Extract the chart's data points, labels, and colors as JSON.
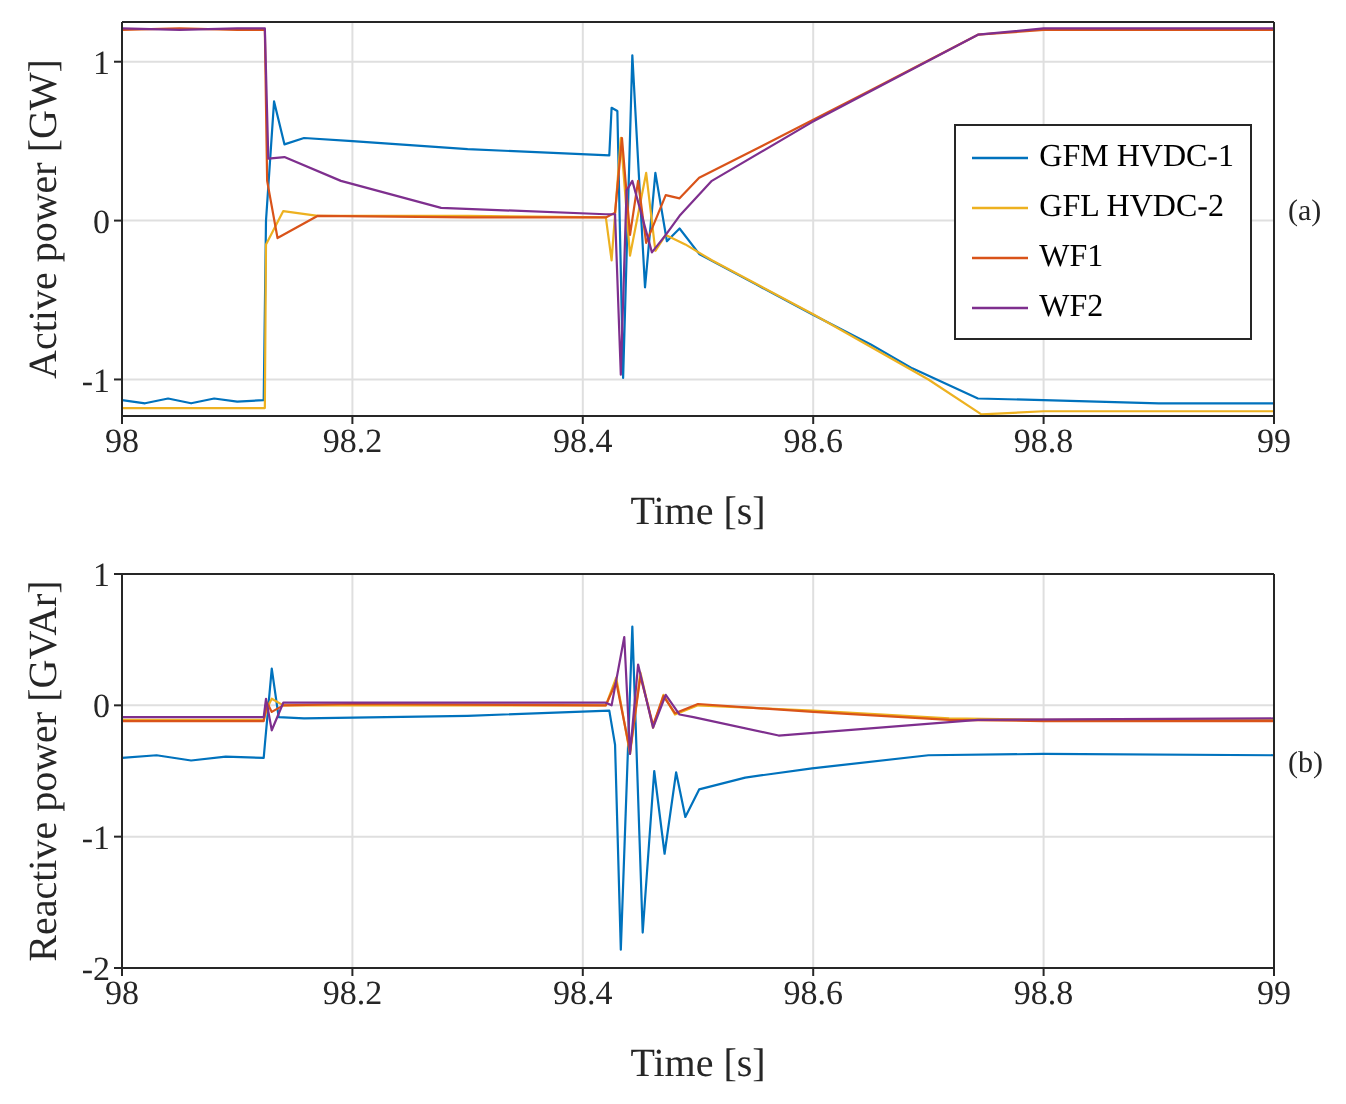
{
  "chart_data": [
    {
      "type": "line",
      "ylabel": "Active power [GW]",
      "xlabel": "Time [s]",
      "xlim": [
        98,
        99
      ],
      "xticks": [
        98,
        98.2,
        98.4,
        98.6,
        98.8,
        99
      ],
      "ylim": [
        -1.23,
        1.25
      ],
      "yticks": [
        -1,
        0,
        1
      ],
      "grid": true,
      "legend": "right",
      "annotations": [
        "(a)"
      ],
      "series": [
        {
          "name": "GFM HVDC-1",
          "color": "#0072bd",
          "x": [
            98,
            98.02,
            98.04,
            98.06,
            98.08,
            98.1,
            98.123,
            98.125,
            98.132,
            98.141,
            98.158,
            98.2,
            98.3,
            98.423,
            98.425,
            98.43,
            98.435,
            98.443,
            98.454,
            98.463,
            98.473,
            98.484,
            98.501,
            98.55,
            98.599,
            98.65,
            98.686,
            98.743,
            98.8,
            98.9,
            99
          ],
          "values": [
            -1.13,
            -1.15,
            -1.12,
            -1.15,
            -1.12,
            -1.14,
            -1.13,
            0.0,
            0.75,
            0.48,
            0.52,
            0.5,
            0.45,
            0.41,
            0.71,
            0.69,
            -0.99,
            1.04,
            -0.42,
            0.3,
            -0.13,
            -0.05,
            -0.21,
            -0.4,
            -0.59,
            -0.78,
            -0.93,
            -1.12,
            -1.13,
            -1.15,
            -1.15
          ]
        },
        {
          "name": "GFL HVDC-2",
          "color": "#edb120",
          "x": [
            98,
            98.05,
            98.1,
            98.124,
            98.125,
            98.14,
            98.17,
            98.3,
            98.42,
            98.425,
            98.433,
            98.441,
            98.455,
            98.463,
            98.472,
            98.489,
            98.512,
            98.6,
            98.7,
            98.746,
            98.8,
            99
          ],
          "values": [
            -1.18,
            -1.18,
            -1.18,
            -1.18,
            -0.15,
            0.06,
            0.03,
            0.03,
            0.02,
            -0.25,
            0.52,
            -0.22,
            0.3,
            -0.19,
            -0.09,
            -0.15,
            -0.25,
            -0.59,
            -1.0,
            -1.22,
            -1.2,
            -1.2
          ]
        },
        {
          "name": "WF1",
          "color": "#d95319",
          "x": [
            98,
            98.05,
            98.1,
            98.124,
            98.126,
            98.135,
            98.17,
            98.3,
            98.42,
            98.428,
            98.434,
            98.441,
            98.448,
            98.455,
            98.472,
            98.484,
            98.501,
            98.553,
            98.65,
            98.743,
            98.8,
            99
          ],
          "values": [
            1.2,
            1.21,
            1.2,
            1.2,
            0.25,
            -0.11,
            0.03,
            0.02,
            0.02,
            0.05,
            0.52,
            -0.09,
            0.25,
            -0.14,
            0.16,
            0.14,
            0.27,
            0.46,
            0.82,
            1.17,
            1.2,
            1.2
          ]
        },
        {
          "name": "WF2",
          "color": "#7e2f8e",
          "x": [
            98,
            98.05,
            98.1,
            98.124,
            98.127,
            98.141,
            98.19,
            98.277,
            98.42,
            98.428,
            98.433,
            98.438,
            98.443,
            98.46,
            98.472,
            98.484,
            98.512,
            98.599,
            98.743,
            98.8,
            99
          ],
          "values": [
            1.21,
            1.2,
            1.21,
            1.21,
            0.39,
            0.4,
            0.25,
            0.08,
            0.04,
            0.04,
            -0.97,
            0.19,
            0.25,
            -0.2,
            -0.09,
            0.03,
            0.25,
            0.62,
            1.17,
            1.21,
            1.21
          ]
        }
      ]
    },
    {
      "type": "line",
      "ylabel": "Reactive power [GVAr]",
      "xlabel": "Time [s]",
      "xlim": [
        98,
        99
      ],
      "xticks": [
        98,
        98.2,
        98.4,
        98.6,
        98.8,
        99
      ],
      "ylim": [
        -2,
        1
      ],
      "yticks": [
        -2,
        -1,
        0,
        1
      ],
      "grid": true,
      "annotations": [
        "(b)"
      ],
      "series": [
        {
          "color": "#0072bd",
          "x": [
            98,
            98.03,
            98.06,
            98.09,
            98.123,
            98.124,
            98.13,
            98.136,
            98.158,
            98.3,
            98.423,
            98.428,
            98.433,
            98.443,
            98.452,
            98.462,
            98.471,
            98.481,
            98.489,
            98.501,
            98.541,
            98.599,
            98.7,
            98.8,
            99
          ],
          "values": [
            -0.4,
            -0.38,
            -0.42,
            -0.39,
            -0.4,
            -0.3,
            0.28,
            -0.09,
            -0.1,
            -0.08,
            -0.04,
            -0.3,
            -1.86,
            0.6,
            -1.73,
            -0.5,
            -1.13,
            -0.51,
            -0.85,
            -0.64,
            -0.55,
            -0.48,
            -0.38,
            -0.37,
            -0.38
          ]
        },
        {
          "color": "#edb120",
          "x": [
            98,
            98.123,
            98.126,
            98.13,
            98.14,
            98.2,
            98.42,
            98.429,
            98.441,
            98.45,
            98.461,
            98.47,
            98.48,
            98.5,
            98.6,
            98.718,
            98.8,
            99
          ],
          "values": [
            -0.11,
            -0.11,
            -0.02,
            0.05,
            0.0,
            0.0,
            0.0,
            0.21,
            -0.37,
            0.25,
            -0.17,
            0.08,
            -0.07,
            0.0,
            -0.04,
            -0.1,
            -0.11,
            -0.11
          ]
        },
        {
          "color": "#d95319",
          "x": [
            98,
            98.123,
            98.126,
            98.13,
            98.14,
            98.2,
            98.42,
            98.429,
            98.441,
            98.45,
            98.461,
            98.47,
            98.48,
            98.5,
            98.6,
            98.718,
            98.8,
            99
          ],
          "values": [
            -0.12,
            -0.12,
            0.02,
            -0.05,
            0.0,
            0.01,
            0.0,
            0.18,
            -0.35,
            0.22,
            -0.15,
            0.07,
            -0.06,
            0.01,
            -0.05,
            -0.11,
            -0.12,
            -0.12
          ]
        },
        {
          "color": "#7e2f8e",
          "x": [
            98,
            98.123,
            98.125,
            98.13,
            98.14,
            98.2,
            98.42,
            98.425,
            98.436,
            98.441,
            98.448,
            98.461,
            98.472,
            98.484,
            98.496,
            98.57,
            98.6,
            98.743,
            99
          ],
          "values": [
            -0.09,
            -0.09,
            0.05,
            -0.19,
            0.02,
            0.02,
            0.02,
            0.0,
            0.52,
            -0.37,
            0.31,
            -0.17,
            0.08,
            -0.07,
            -0.09,
            -0.23,
            -0.21,
            -0.11,
            -0.1
          ]
        }
      ]
    }
  ]
}
